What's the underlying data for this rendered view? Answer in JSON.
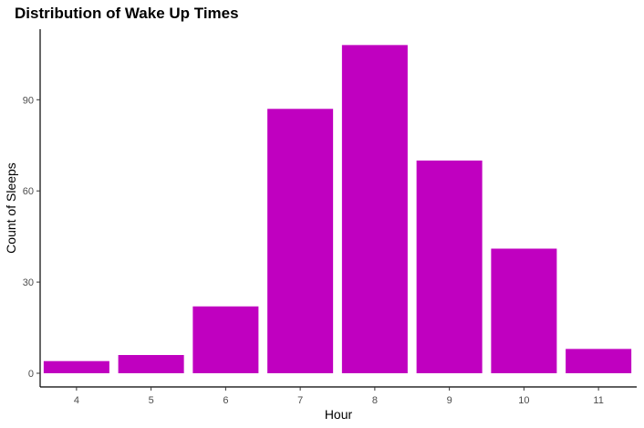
{
  "chart_data": {
    "type": "bar",
    "title": "Distribution of Wake Up Times",
    "xlabel": "Hour",
    "ylabel": "Count of Sleeps",
    "categories": [
      "4",
      "5",
      "6",
      "7",
      "8",
      "9",
      "10",
      "11"
    ],
    "values": [
      4,
      6,
      22,
      87,
      108,
      70,
      41,
      8
    ],
    "ylim": [
      0,
      113
    ],
    "yticks": [
      0,
      30,
      60,
      90
    ],
    "grid": false,
    "legend": "none",
    "bar_color": "#C000C0"
  }
}
